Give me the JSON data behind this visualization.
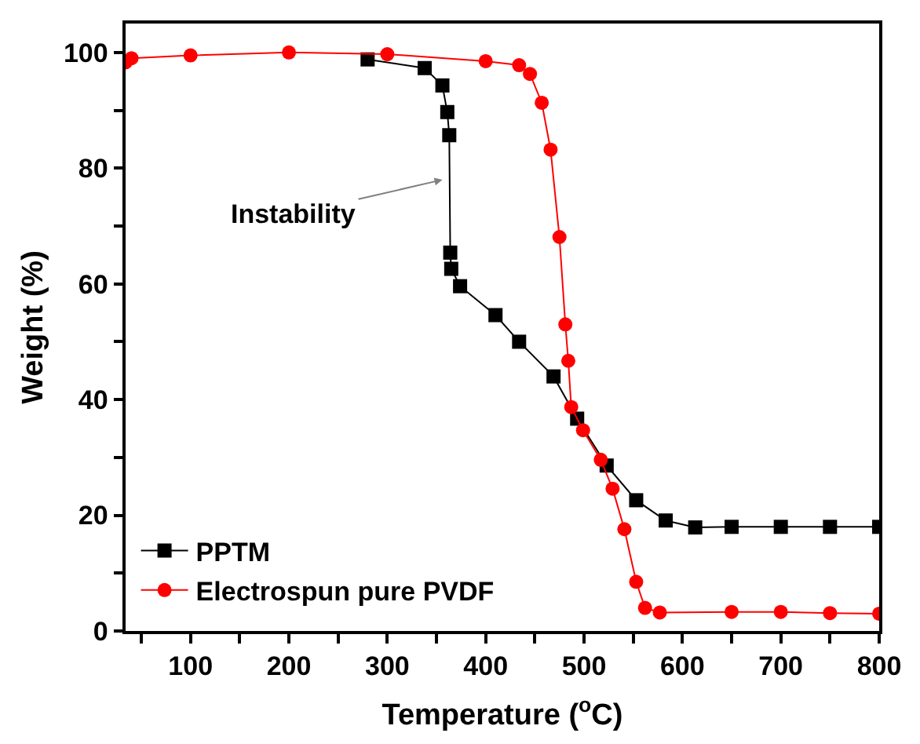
{
  "chart_data": {
    "type": "line",
    "xlabel": "Temperature ($^{o}$C)",
    "ylabel": "Weight (%)",
    "xlim": [
      34,
      800
    ],
    "ylim": [
      0,
      105
    ],
    "xticks": [
      {
        "value": 50,
        "label": null
      },
      100,
      {
        "value": 150,
        "label": null
      },
      200,
      {
        "value": 250,
        "label": null
      },
      300,
      {
        "value": 350,
        "label": null
      },
      400,
      {
        "value": 450,
        "label": null
      },
      500,
      {
        "value": 550,
        "label": null
      },
      600,
      {
        "value": 650,
        "label": null
      },
      700,
      {
        "value": 750,
        "label": null
      },
      800
    ],
    "yticks": [
      0,
      {
        "value": 10,
        "label": null
      },
      20,
      {
        "value": 30,
        "label": null
      },
      40,
      {
        "value": 50,
        "label": null
      },
      60,
      {
        "value": 70,
        "label": null
      },
      80,
      {
        "value": 90,
        "label": null
      },
      100
    ],
    "legend": "bottom left",
    "line_style": "solid",
    "series": [
      {
        "name": "PPTM",
        "color": "#000000",
        "marker": "square",
        "x": [
          280,
          338,
          356,
          361,
          363,
          364,
          365,
          374,
          410,
          434,
          469,
          493,
          523,
          553,
          583,
          613,
          650,
          700,
          750,
          800
        ],
        "values": [
          98.8,
          97.3,
          94.3,
          89.7,
          85.7,
          65.4,
          62.6,
          59.6,
          54.6,
          50,
          44,
          36.7,
          28.6,
          22.6,
          19.1,
          17.9,
          18,
          18,
          18,
          18
        ]
      },
      {
        "name": "Electrospun pure PVDF",
        "color": "#ff0000",
        "marker": "circle",
        "x": [
          34,
          40,
          100,
          200,
          300,
          400,
          434,
          445,
          457,
          466,
          475,
          481,
          484,
          487,
          499,
          517,
          529,
          541,
          553,
          562,
          577,
          650,
          700,
          750,
          800
        ],
        "values": [
          98.3,
          99,
          99.5,
          100,
          99.7,
          98.5,
          97.8,
          96.3,
          91.3,
          83.2,
          68.1,
          53,
          46.7,
          38.7,
          34.7,
          29.6,
          24.6,
          17.6,
          8.5,
          4,
          3.2,
          3.3,
          3.3,
          3.1,
          3
        ]
      }
    ],
    "annotations": [
      {
        "text": "Instability",
        "x": 356,
        "y": 78
      }
    ]
  }
}
